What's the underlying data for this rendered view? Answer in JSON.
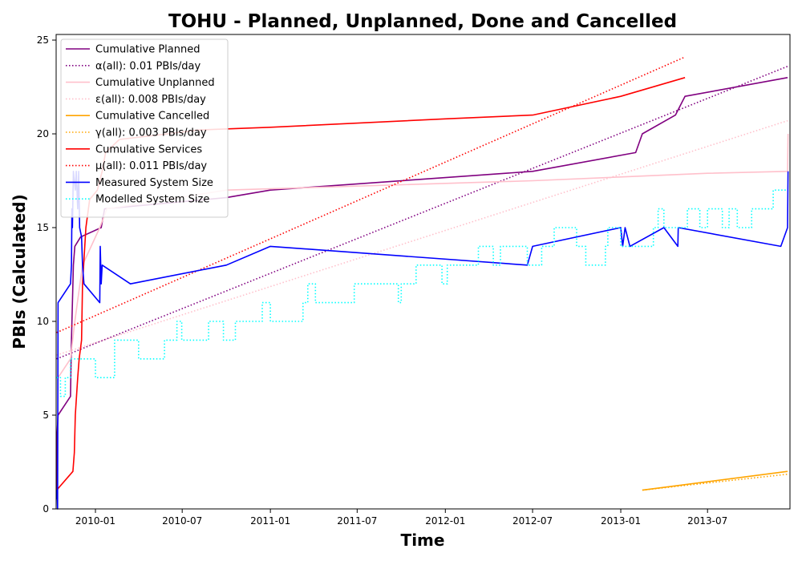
{
  "chart_data": {
    "type": "line",
    "title": "TOHU - Planned, Unplanned, Done  and Cancelled",
    "xlabel": "Time",
    "ylabel": "PBIs (Calculated)",
    "xlim": [
      "2009-10-11",
      "2013-12-20"
    ],
    "ylim": [
      0,
      25.3
    ],
    "x_ticks": [
      "2010-01-01",
      "2010-07-01",
      "2011-01-01",
      "2011-07-01",
      "2012-01-01",
      "2012-07-01",
      "2013-01-01",
      "2013-07-01"
    ],
    "x_tick_labels": [
      "2010-01",
      "2010-07",
      "2011-01",
      "2011-07",
      "2012-01",
      "2012-07",
      "2013-01",
      "2013-07"
    ],
    "y_ticks": [
      0,
      5,
      10,
      15,
      20,
      25
    ],
    "grid": false,
    "legend_position": "top-left",
    "series": [
      {
        "name": "Cumulative Planned",
        "color": "#800080",
        "style": "solid",
        "points": [
          [
            "2009-10-12",
            1
          ],
          [
            "2009-10-13",
            4
          ],
          [
            "2009-10-15",
            5
          ],
          [
            "2009-11-10",
            6
          ],
          [
            "2009-11-12",
            9
          ],
          [
            "2009-11-16",
            13
          ],
          [
            "2009-11-19",
            14
          ],
          [
            "2009-12-01",
            14.5
          ],
          [
            "2010-01-13",
            15
          ],
          [
            "2010-01-20",
            16
          ],
          [
            "2010-10-01",
            16.6
          ],
          [
            "2011-01-01",
            17
          ],
          [
            "2012-07-01",
            18
          ],
          [
            "2013-02-01",
            19
          ],
          [
            "2013-02-15",
            20
          ],
          [
            "2013-04-25",
            21
          ],
          [
            "2013-05-15",
            22
          ],
          [
            "2013-12-15",
            23
          ]
        ]
      },
      {
        "name": "α(all): 0.01 PBIs/day",
        "color": "#800080",
        "style": "dotted",
        "points": [
          [
            "2009-10-12",
            8
          ],
          [
            "2013-12-15",
            23.6
          ]
        ]
      },
      {
        "name": "Cumulative Unplanned",
        "color": "#ffc0cb",
        "style": "solid",
        "points": [
          [
            "2009-10-15",
            7
          ],
          [
            "2009-11-10",
            8
          ],
          [
            "2009-11-19",
            10
          ],
          [
            "2009-12-05",
            13
          ],
          [
            "2010-01-10",
            15
          ],
          [
            "2010-01-25",
            16
          ],
          [
            "2010-10-01",
            17
          ],
          [
            "2012-07-01",
            17.5
          ],
          [
            "2013-07-01",
            17.9
          ],
          [
            "2013-12-15",
            18
          ],
          [
            "2013-12-16",
            20
          ]
        ]
      },
      {
        "name": "ε(all): 0.008 PBIs/day",
        "color": "#ffc0cb",
        "style": "dotted",
        "points": [
          [
            "2009-10-12",
            8.2
          ],
          [
            "2013-12-15",
            20.7
          ]
        ]
      },
      {
        "name": "Cumulative Cancelled",
        "color": "#ffa500",
        "style": "solid",
        "points": [
          [
            "2013-02-15",
            1
          ],
          [
            "2013-12-15",
            2
          ]
        ]
      },
      {
        "name": "γ(all): 0.003 PBIs/day",
        "color": "#ffa500",
        "style": "dotted",
        "points": [
          [
            "2013-02-15",
            1
          ],
          [
            "2013-12-15",
            1.85
          ]
        ]
      },
      {
        "name": "Cumulative Services",
        "color": "#ff0000",
        "style": "solid",
        "points": [
          [
            "2009-10-12",
            1
          ],
          [
            "2009-11-15",
            2
          ],
          [
            "2009-11-18",
            3
          ],
          [
            "2009-11-20",
            5
          ],
          [
            "2009-11-25",
            7
          ],
          [
            "2009-11-28",
            8
          ],
          [
            "2009-12-03",
            9
          ],
          [
            "2009-12-05",
            12
          ],
          [
            "2009-12-12",
            15
          ],
          [
            "2009-12-20",
            16.5
          ],
          [
            "2010-01-05",
            17
          ],
          [
            "2010-01-15",
            18
          ],
          [
            "2010-01-22",
            19
          ],
          [
            "2010-02-20",
            19.7
          ],
          [
            "2010-06-01",
            20
          ],
          [
            "2010-08-01",
            20.2
          ],
          [
            "2011-01-01",
            20.35
          ],
          [
            "2012-01-01",
            20.8
          ],
          [
            "2012-07-01",
            21
          ],
          [
            "2013-01-01",
            22
          ],
          [
            "2013-05-15",
            23
          ]
        ]
      },
      {
        "name": "μ(all): 0.011 PBIs/day",
        "color": "#ff0000",
        "style": "dotted",
        "points": [
          [
            "2009-10-12",
            9.4
          ],
          [
            "2013-05-15",
            24.1
          ]
        ]
      },
      {
        "name": "Measured System Size",
        "color": "#0000ff",
        "style": "solid",
        "points": [
          [
            "2009-10-12",
            0.5
          ],
          [
            "2009-10-13",
            1
          ],
          [
            "2009-10-14",
            0
          ],
          [
            "2009-10-15",
            11
          ],
          [
            "2009-11-10",
            12
          ],
          [
            "2009-11-12",
            13
          ],
          [
            "2009-11-13",
            16
          ],
          [
            "2009-11-14",
            15
          ],
          [
            "2009-11-16",
            18
          ],
          [
            "2009-11-20",
            17
          ],
          [
            "2009-11-22",
            18
          ],
          [
            "2009-11-25",
            16
          ],
          [
            "2009-11-27",
            18
          ],
          [
            "2009-11-29",
            15
          ],
          [
            "2009-12-03",
            14.5
          ],
          [
            "2009-12-05",
            13
          ],
          [
            "2009-12-08",
            12
          ],
          [
            "2010-01-10",
            11
          ],
          [
            "2010-01-11",
            14
          ],
          [
            "2010-01-13",
            12
          ],
          [
            "2010-01-15",
            13
          ],
          [
            "2010-03-15",
            12
          ],
          [
            "2010-10-01",
            13
          ],
          [
            "2011-01-01",
            14
          ],
          [
            "2012-06-20",
            13
          ],
          [
            "2012-07-01",
            14
          ],
          [
            "2013-01-01",
            15
          ],
          [
            "2013-01-05",
            14
          ],
          [
            "2013-01-10",
            15
          ],
          [
            "2013-01-20",
            14
          ],
          [
            "2013-04-01",
            15
          ],
          [
            "2013-04-30",
            14
          ],
          [
            "2013-05-01",
            15
          ],
          [
            "2013-12-01",
            14
          ],
          [
            "2013-12-15",
            15
          ],
          [
            "2013-12-16",
            18
          ]
        ]
      },
      {
        "name": "Modelled System Size",
        "color": "#00ffff",
        "style": "dotted",
        "points": [
          [
            "2009-10-12",
            7
          ],
          [
            "2009-10-20",
            7
          ],
          [
            "2009-10-20",
            6
          ],
          [
            "2009-10-30",
            6
          ],
          [
            "2009-10-30",
            7
          ],
          [
            "2009-11-10",
            7
          ],
          [
            "2009-11-10",
            8
          ],
          [
            "2010-01-01",
            8
          ],
          [
            "2010-01-01",
            7
          ],
          [
            "2010-02-10",
            7
          ],
          [
            "2010-02-10",
            9
          ],
          [
            "2010-04-01",
            9
          ],
          [
            "2010-04-01",
            8
          ],
          [
            "2010-05-25",
            8
          ],
          [
            "2010-05-25",
            9
          ],
          [
            "2010-06-20",
            9
          ],
          [
            "2010-06-20",
            10
          ],
          [
            "2010-06-30",
            10
          ],
          [
            "2010-06-30",
            9
          ],
          [
            "2010-08-25",
            9
          ],
          [
            "2010-08-25",
            10
          ],
          [
            "2010-09-25",
            10
          ],
          [
            "2010-09-25",
            9
          ],
          [
            "2010-10-20",
            9
          ],
          [
            "2010-10-20",
            10
          ],
          [
            "2010-12-15",
            10
          ],
          [
            "2010-12-15",
            11
          ],
          [
            "2011-01-01",
            11
          ],
          [
            "2011-01-01",
            10
          ],
          [
            "2011-03-10",
            10
          ],
          [
            "2011-03-10",
            11
          ],
          [
            "2011-03-20",
            11
          ],
          [
            "2011-03-20",
            12
          ],
          [
            "2011-04-05",
            12
          ],
          [
            "2011-04-05",
            11
          ],
          [
            "2011-06-25",
            11
          ],
          [
            "2011-06-25",
            12
          ],
          [
            "2011-09-25",
            12
          ],
          [
            "2011-09-25",
            11
          ],
          [
            "2011-10-01",
            11
          ],
          [
            "2011-10-01",
            12
          ],
          [
            "2011-11-01",
            12
          ],
          [
            "2011-11-01",
            13
          ],
          [
            "2011-12-25",
            13
          ],
          [
            "2011-12-25",
            12
          ],
          [
            "2012-01-05",
            12
          ],
          [
            "2012-01-05",
            13
          ],
          [
            "2012-03-10",
            13
          ],
          [
            "2012-03-10",
            14
          ],
          [
            "2012-04-10",
            14
          ],
          [
            "2012-04-10",
            13
          ],
          [
            "2012-04-25",
            13
          ],
          [
            "2012-04-25",
            14
          ],
          [
            "2012-06-20",
            14
          ],
          [
            "2012-06-20",
            13
          ],
          [
            "2012-07-20",
            13
          ],
          [
            "2012-07-20",
            14
          ],
          [
            "2012-08-15",
            14
          ],
          [
            "2012-08-15",
            15
          ],
          [
            "2012-10-01",
            15
          ],
          [
            "2012-10-01",
            14
          ],
          [
            "2012-10-20",
            14
          ],
          [
            "2012-10-20",
            13
          ],
          [
            "2012-11-30",
            13
          ],
          [
            "2012-11-30",
            14
          ],
          [
            "2012-12-05",
            14
          ],
          [
            "2012-12-05",
            15
          ],
          [
            "2013-01-01",
            15
          ],
          [
            "2013-01-01",
            14
          ],
          [
            "2013-03-10",
            14
          ],
          [
            "2013-03-10",
            15
          ],
          [
            "2013-03-20",
            15
          ],
          [
            "2013-03-20",
            16
          ],
          [
            "2013-04-01",
            16
          ],
          [
            "2013-04-01",
            15
          ],
          [
            "2013-05-20",
            15
          ],
          [
            "2013-05-20",
            16
          ],
          [
            "2013-06-15",
            16
          ],
          [
            "2013-06-15",
            15
          ],
          [
            "2013-07-01",
            15
          ],
          [
            "2013-07-01",
            16
          ],
          [
            "2013-08-01",
            16
          ],
          [
            "2013-08-01",
            15
          ],
          [
            "2013-08-15",
            15
          ],
          [
            "2013-08-15",
            16
          ],
          [
            "2013-09-01",
            16
          ],
          [
            "2013-09-01",
            15
          ],
          [
            "2013-10-01",
            15
          ],
          [
            "2013-10-01",
            16
          ],
          [
            "2013-11-15",
            16
          ],
          [
            "2013-11-15",
            17
          ],
          [
            "2013-12-15",
            17
          ]
        ]
      }
    ]
  }
}
